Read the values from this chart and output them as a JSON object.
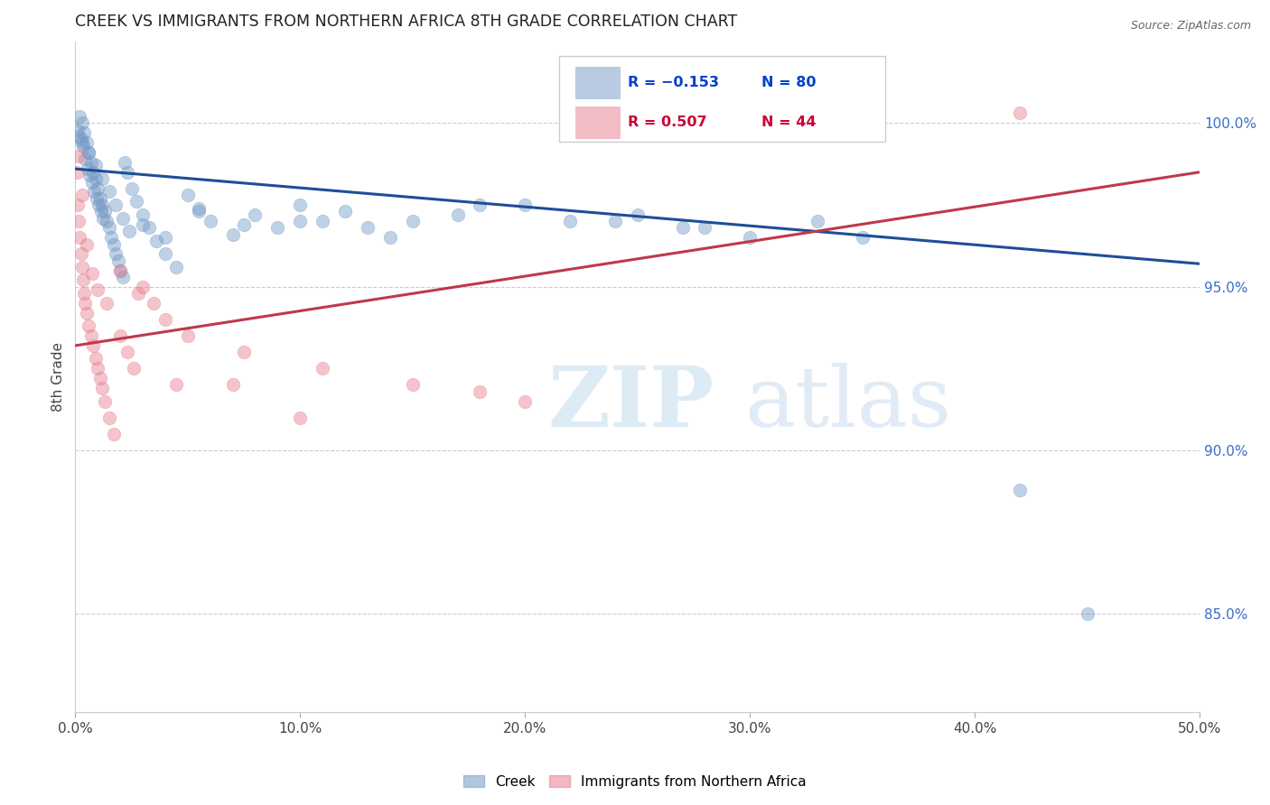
{
  "title": "CREEK VS IMMIGRANTS FROM NORTHERN AFRICA 8TH GRADE CORRELATION CHART",
  "source": "Source: ZipAtlas.com",
  "ylabel": "8th Grade",
  "xlim": [
    0.0,
    50.0
  ],
  "ylim": [
    82.0,
    102.5
  ],
  "right_yticks": [
    85.0,
    90.0,
    95.0,
    100.0
  ],
  "legend_blue_r": "R = −0.153",
  "legend_blue_n": "N = 80",
  "legend_pink_r": "R = 0.507",
  "legend_pink_n": "N = 44",
  "blue_color": "#7399C6",
  "pink_color": "#E87D8E",
  "blue_line_color": "#1F4E98",
  "pink_line_color": "#C0384B",
  "blue_scatter_x": [
    0.1,
    0.15,
    0.2,
    0.25,
    0.3,
    0.35,
    0.4,
    0.45,
    0.5,
    0.55,
    0.6,
    0.65,
    0.7,
    0.75,
    0.8,
    0.85,
    0.9,
    0.95,
    1.0,
    1.05,
    1.1,
    1.15,
    1.2,
    1.25,
    1.3,
    1.4,
    1.5,
    1.6,
    1.7,
    1.8,
    1.9,
    2.0,
    2.1,
    2.2,
    2.3,
    2.5,
    2.7,
    3.0,
    3.3,
    3.6,
    4.0,
    4.5,
    5.0,
    5.5,
    6.0,
    7.0,
    8.0,
    9.0,
    10.0,
    11.0,
    12.0,
    14.0,
    15.0,
    17.0,
    20.0,
    22.0,
    25.0,
    28.0,
    30.0,
    33.0,
    0.3,
    0.6,
    0.9,
    1.2,
    1.5,
    1.8,
    2.1,
    2.4,
    3.0,
    4.0,
    5.5,
    7.5,
    10.0,
    13.0,
    18.0,
    24.0,
    27.0,
    35.0,
    42.0,
    45.0
  ],
  "blue_scatter_y": [
    99.8,
    99.6,
    100.2,
    99.5,
    100.0,
    99.3,
    99.7,
    98.9,
    99.4,
    98.6,
    99.1,
    98.4,
    98.8,
    98.2,
    98.5,
    97.9,
    98.3,
    97.7,
    98.0,
    97.5,
    97.7,
    97.3,
    97.5,
    97.1,
    97.3,
    97.0,
    96.8,
    96.5,
    96.3,
    96.0,
    95.8,
    95.5,
    95.3,
    98.8,
    98.5,
    98.0,
    97.6,
    97.2,
    96.8,
    96.4,
    96.0,
    95.6,
    97.8,
    97.4,
    97.0,
    96.6,
    97.2,
    96.8,
    97.5,
    97.0,
    97.3,
    96.5,
    97.0,
    97.2,
    97.5,
    97.0,
    97.2,
    96.8,
    96.5,
    97.0,
    99.4,
    99.1,
    98.7,
    98.3,
    97.9,
    97.5,
    97.1,
    96.7,
    96.9,
    96.5,
    97.3,
    96.9,
    97.0,
    96.8,
    97.5,
    97.0,
    96.8,
    96.5,
    88.8,
    85.0
  ],
  "pink_scatter_x": [
    0.05,
    0.1,
    0.15,
    0.2,
    0.25,
    0.3,
    0.35,
    0.4,
    0.45,
    0.5,
    0.6,
    0.7,
    0.8,
    0.9,
    1.0,
    1.1,
    1.2,
    1.3,
    1.5,
    1.7,
    2.0,
    2.3,
    2.6,
    3.0,
    3.5,
    4.0,
    5.0,
    7.0,
    10.0,
    0.15,
    0.3,
    0.5,
    0.75,
    1.0,
    1.4,
    2.0,
    2.8,
    4.5,
    7.5,
    11.0,
    15.0,
    18.0,
    20.0,
    42.0
  ],
  "pink_scatter_y": [
    98.5,
    97.5,
    97.0,
    96.5,
    96.0,
    95.6,
    95.2,
    94.8,
    94.5,
    94.2,
    93.8,
    93.5,
    93.2,
    92.8,
    92.5,
    92.2,
    91.9,
    91.5,
    91.0,
    90.5,
    93.5,
    93.0,
    92.5,
    95.0,
    94.5,
    94.0,
    93.5,
    92.0,
    91.0,
    99.0,
    97.8,
    96.3,
    95.4,
    94.9,
    94.5,
    95.5,
    94.8,
    92.0,
    93.0,
    92.5,
    92.0,
    91.8,
    91.5,
    100.3
  ],
  "blue_trend_x": [
    0.0,
    50.0
  ],
  "blue_trend_y": [
    98.6,
    95.7
  ],
  "pink_trend_x": [
    0.0,
    50.0
  ],
  "pink_trend_y": [
    93.2,
    98.5
  ]
}
